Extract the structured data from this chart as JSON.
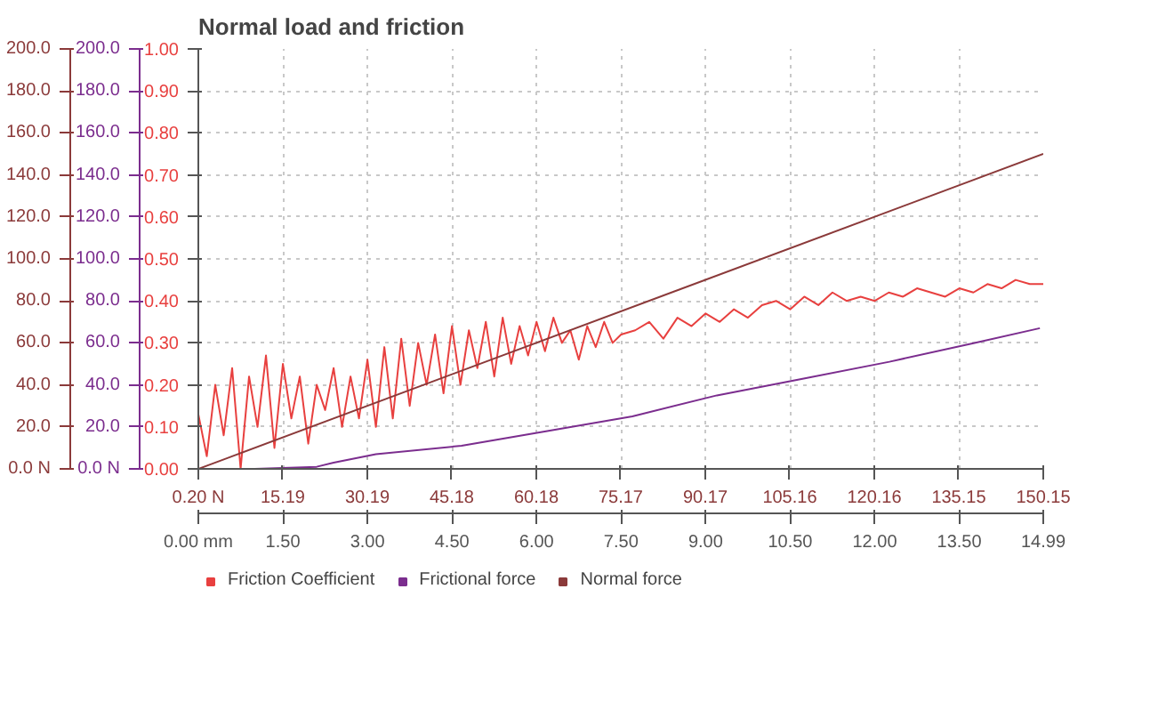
{
  "chart_data": {
    "type": "line",
    "title": "Normal load and friction",
    "xlim": [
      0,
      14.99
    ],
    "xticks": [
      {
        "value": 0,
        "label": "0.00 mm"
      },
      {
        "value": 1.5,
        "label": "1.50"
      },
      {
        "value": 3,
        "label": "3.00"
      },
      {
        "value": 4.5,
        "label": "4.50"
      },
      {
        "value": 6,
        "label": "6.00"
      },
      {
        "value": 7.5,
        "label": "7.50"
      },
      {
        "value": 9,
        "label": "9.00"
      },
      {
        "value": 10.5,
        "label": "10.50"
      },
      {
        "value": 12,
        "label": "12.00"
      },
      {
        "value": 13.5,
        "label": "13.50"
      },
      {
        "value": 14.99,
        "label": "14.99"
      }
    ],
    "x2lim": [
      0.2,
      150.15
    ],
    "x2ticks": [
      {
        "value": 0.2,
        "label": "0.20 N"
      },
      15.19,
      30.19,
      45.18,
      60.18,
      75.17,
      90.17,
      105.16,
      120.16,
      135.15,
      150.15
    ],
    "ylim": [
      0,
      200
    ],
    "yticks": [
      {
        "value": 0,
        "label": "0.0 N"
      },
      {
        "value": 20,
        "label": "20.0"
      },
      {
        "value": 40,
        "label": "40.0"
      },
      {
        "value": 60,
        "label": "60.0"
      },
      {
        "value": 80,
        "label": "80.0"
      },
      {
        "value": 100,
        "label": "100.0"
      },
      {
        "value": 120,
        "label": "120.0"
      },
      {
        "value": 140,
        "label": "140.0"
      },
      {
        "value": 160,
        "label": "160.0"
      },
      {
        "value": 180,
        "label": "180.0"
      },
      {
        "value": 200,
        "label": "200.0"
      }
    ],
    "y2lim": [
      0,
      200
    ],
    "y2ticks": [
      {
        "value": 0,
        "label": "0.0 N"
      },
      {
        "value": 20,
        "label": "20.0"
      },
      {
        "value": 40,
        "label": "40.0"
      },
      {
        "value": 60,
        "label": "60.0"
      },
      {
        "value": 80,
        "label": "80.0"
      },
      {
        "value": 100,
        "label": "100.0"
      },
      {
        "value": 120,
        "label": "120.0"
      },
      {
        "value": 140,
        "label": "140.0"
      },
      {
        "value": 160,
        "label": "160.0"
      },
      {
        "value": 180,
        "label": "180.0"
      },
      {
        "value": 200,
        "label": "200.0"
      }
    ],
    "y3lim": [
      0,
      1
    ],
    "y3ticks": [
      {
        "value": 0,
        "label": "0.00"
      },
      {
        "value": 0.1,
        "label": "0.10"
      },
      {
        "value": 0.2,
        "label": "0.20"
      },
      {
        "value": 0.3,
        "label": "0.30"
      },
      {
        "value": 0.4,
        "label": "0.40"
      },
      {
        "value": 0.5,
        "label": "0.50"
      },
      {
        "value": 0.6,
        "label": "0.60"
      },
      {
        "value": 0.7,
        "label": "0.70"
      },
      {
        "value": 0.8,
        "label": "0.80"
      },
      {
        "value": 0.9,
        "label": "0.90"
      },
      {
        "value": 1,
        "label": "1.00"
      }
    ],
    "grid": true,
    "legend": "bottom left",
    "series": [
      {
        "name": "Friction Coefficient",
        "color": "#e8403f",
        "axis": "y3",
        "x": [
          0,
          0.15,
          0.3,
          0.45,
          0.6,
          0.75,
          0.9,
          1.05,
          1.2,
          1.35,
          1.5,
          1.65,
          1.8,
          1.95,
          2.1,
          2.25,
          2.4,
          2.55,
          2.7,
          2.85,
          3.0,
          3.15,
          3.3,
          3.45,
          3.6,
          3.75,
          3.9,
          4.05,
          4.2,
          4.35,
          4.5,
          4.65,
          4.8,
          4.95,
          5.1,
          5.25,
          5.4,
          5.55,
          5.7,
          5.85,
          6.0,
          6.15,
          6.3,
          6.45,
          6.6,
          6.75,
          6.9,
          7.05,
          7.2,
          7.35,
          7.5,
          7.75,
          8.0,
          8.25,
          8.5,
          8.75,
          9.0,
          9.25,
          9.5,
          9.75,
          10.0,
          10.25,
          10.5,
          10.75,
          11.0,
          11.25,
          11.5,
          11.75,
          12.0,
          12.25,
          12.5,
          12.75,
          13.0,
          13.25,
          13.5,
          13.75,
          14.0,
          14.25,
          14.5,
          14.75,
          14.99
        ],
        "values": [
          0.13,
          0.03,
          0.2,
          0.08,
          0.24,
          0.0,
          0.22,
          0.1,
          0.27,
          0.05,
          0.25,
          0.12,
          0.22,
          0.06,
          0.2,
          0.14,
          0.24,
          0.1,
          0.22,
          0.12,
          0.26,
          0.1,
          0.29,
          0.12,
          0.31,
          0.15,
          0.3,
          0.2,
          0.32,
          0.18,
          0.34,
          0.2,
          0.33,
          0.24,
          0.35,
          0.22,
          0.36,
          0.25,
          0.34,
          0.27,
          0.35,
          0.28,
          0.36,
          0.3,
          0.33,
          0.26,
          0.34,
          0.29,
          0.35,
          0.3,
          0.32,
          0.33,
          0.35,
          0.31,
          0.36,
          0.34,
          0.37,
          0.35,
          0.38,
          0.36,
          0.39,
          0.4,
          0.38,
          0.41,
          0.39,
          0.42,
          0.4,
          0.41,
          0.4,
          0.42,
          0.41,
          0.43,
          0.42,
          0.41,
          0.43,
          0.42,
          0.44,
          0.43,
          0.45,
          0.44,
          0.44
        ]
      },
      {
        "name": "Frictional force",
        "color": "#7b2d8e",
        "axis": "y2",
        "x": [
          0,
          1.0,
          2.1,
          2.4,
          3.15,
          4.67,
          6.19,
          7.7,
          9.2,
          10.74,
          12.26,
          13.77,
          14.93
        ],
        "values": [
          0,
          0,
          1,
          3,
          7,
          11,
          18,
          25,
          35,
          43,
          51,
          60,
          67
        ]
      },
      {
        "name": "Normal force",
        "color": "#8b3a3a",
        "axis": "y",
        "x": [
          0,
          14.99
        ],
        "values": [
          0,
          150
        ]
      }
    ]
  }
}
